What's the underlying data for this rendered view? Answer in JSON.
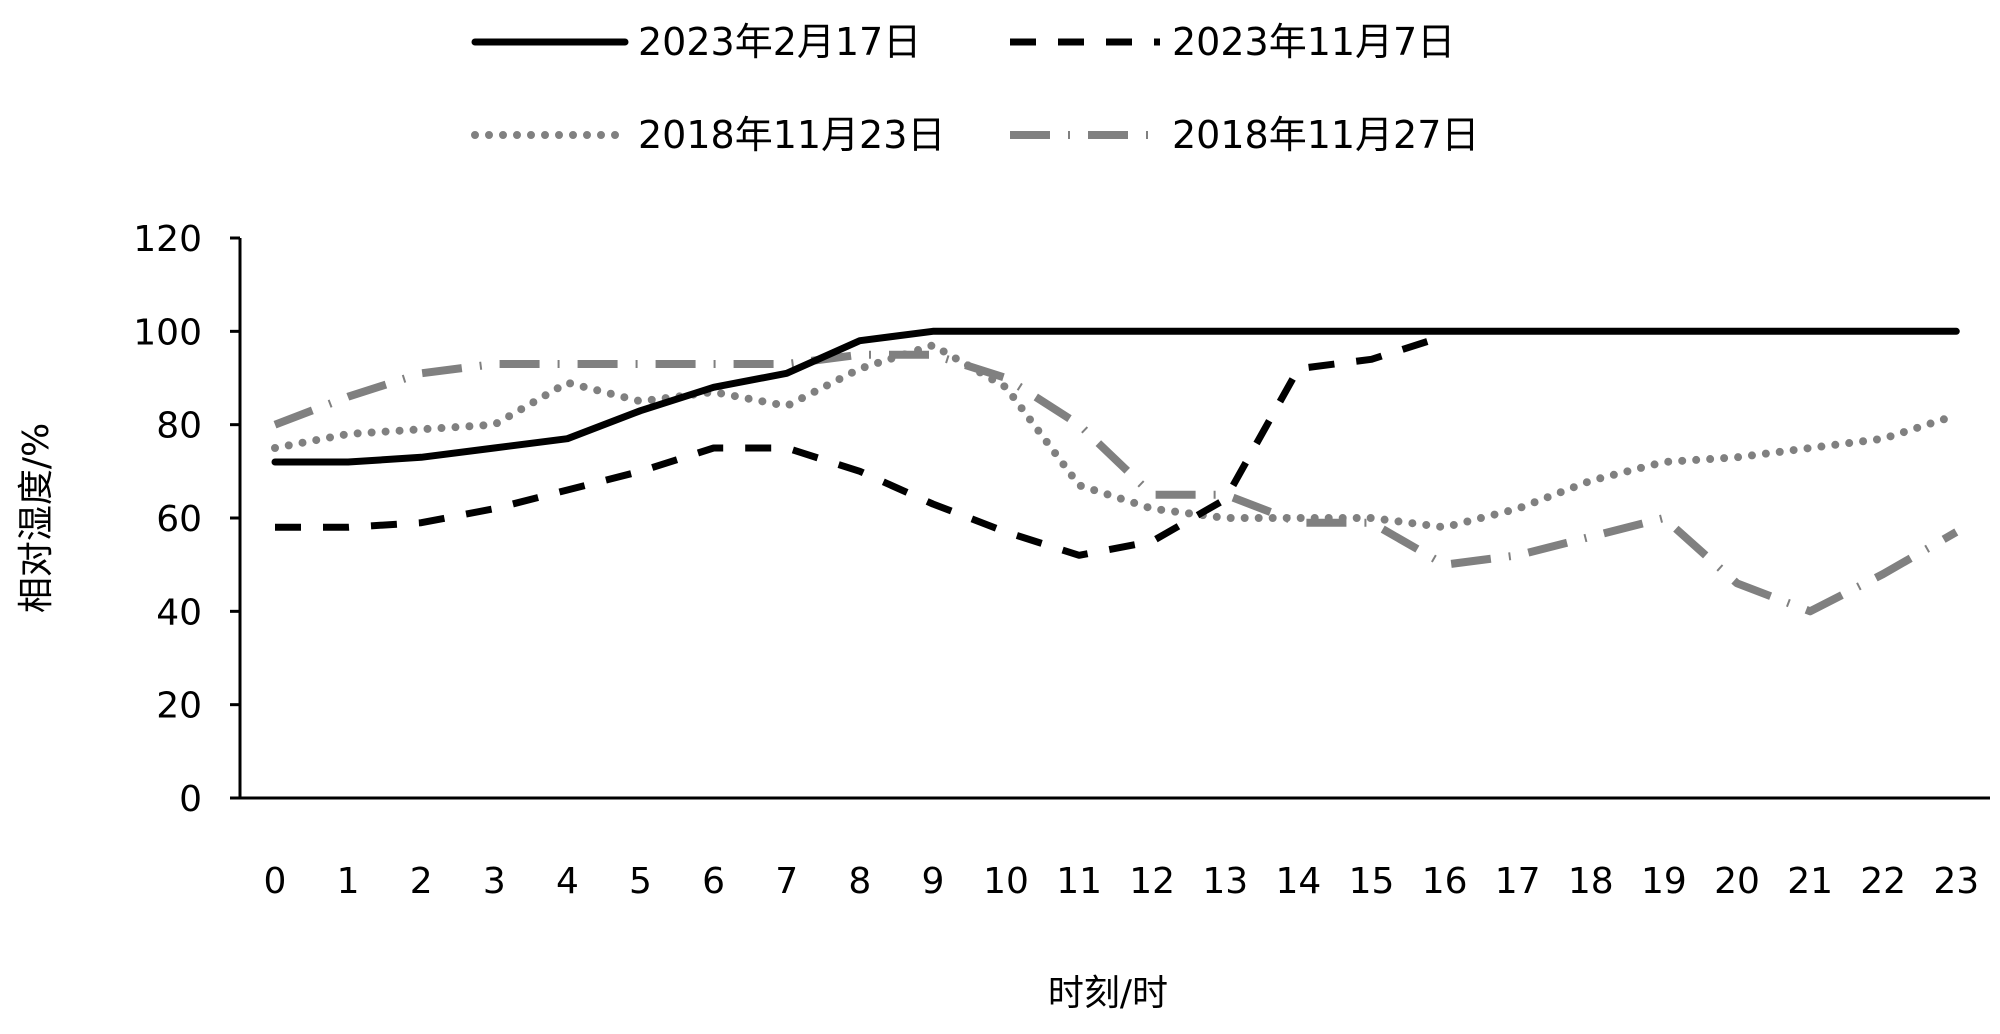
{
  "chart_data": {
    "type": "line",
    "xlabel": "时刻/时",
    "ylabel": "相对湿度/%",
    "ylim": [
      0,
      120
    ],
    "yticks": [
      0,
      20,
      40,
      60,
      80,
      100,
      120
    ],
    "x": [
      0,
      1,
      2,
      3,
      4,
      5,
      6,
      7,
      8,
      9,
      10,
      11,
      12,
      13,
      14,
      15,
      16,
      17,
      18,
      19,
      20,
      21,
      22,
      23
    ],
    "grid": false,
    "legend_position": "top",
    "series": [
      {
        "name": "2023年2月17日",
        "style": "solid",
        "color": "#000000",
        "values": [
          72,
          72,
          73,
          75,
          77,
          83,
          88,
          91,
          98,
          100,
          100,
          100,
          100,
          100,
          100,
          100,
          100,
          100,
          100,
          100,
          100,
          100,
          100,
          100
        ]
      },
      {
        "name": "2023年11月7日",
        "style": "dash",
        "color": "#000000",
        "values": [
          58,
          58,
          59,
          62,
          66,
          70,
          75,
          75,
          70,
          63,
          57,
          52,
          55,
          64,
          92,
          94,
          99,
          null,
          null,
          null,
          null,
          null,
          null,
          null
        ]
      },
      {
        "name": "2018年11月23日",
        "style": "dot",
        "color": "#808080",
        "values": [
          75,
          78,
          79,
          80,
          89,
          85,
          87,
          84,
          92,
          97,
          88,
          67,
          62,
          60,
          60,
          60,
          58,
          62,
          68,
          72,
          73,
          75,
          77,
          82
        ]
      },
      {
        "name": "2018年11月27日",
        "style": "dashdot",
        "color": "#808080",
        "values": [
          80,
          86,
          91,
          93,
          93,
          93,
          93,
          93,
          95,
          95,
          90,
          80,
          65,
          65,
          59,
          59,
          50,
          52,
          56,
          60,
          46,
          40,
          48,
          57
        ]
      }
    ]
  }
}
